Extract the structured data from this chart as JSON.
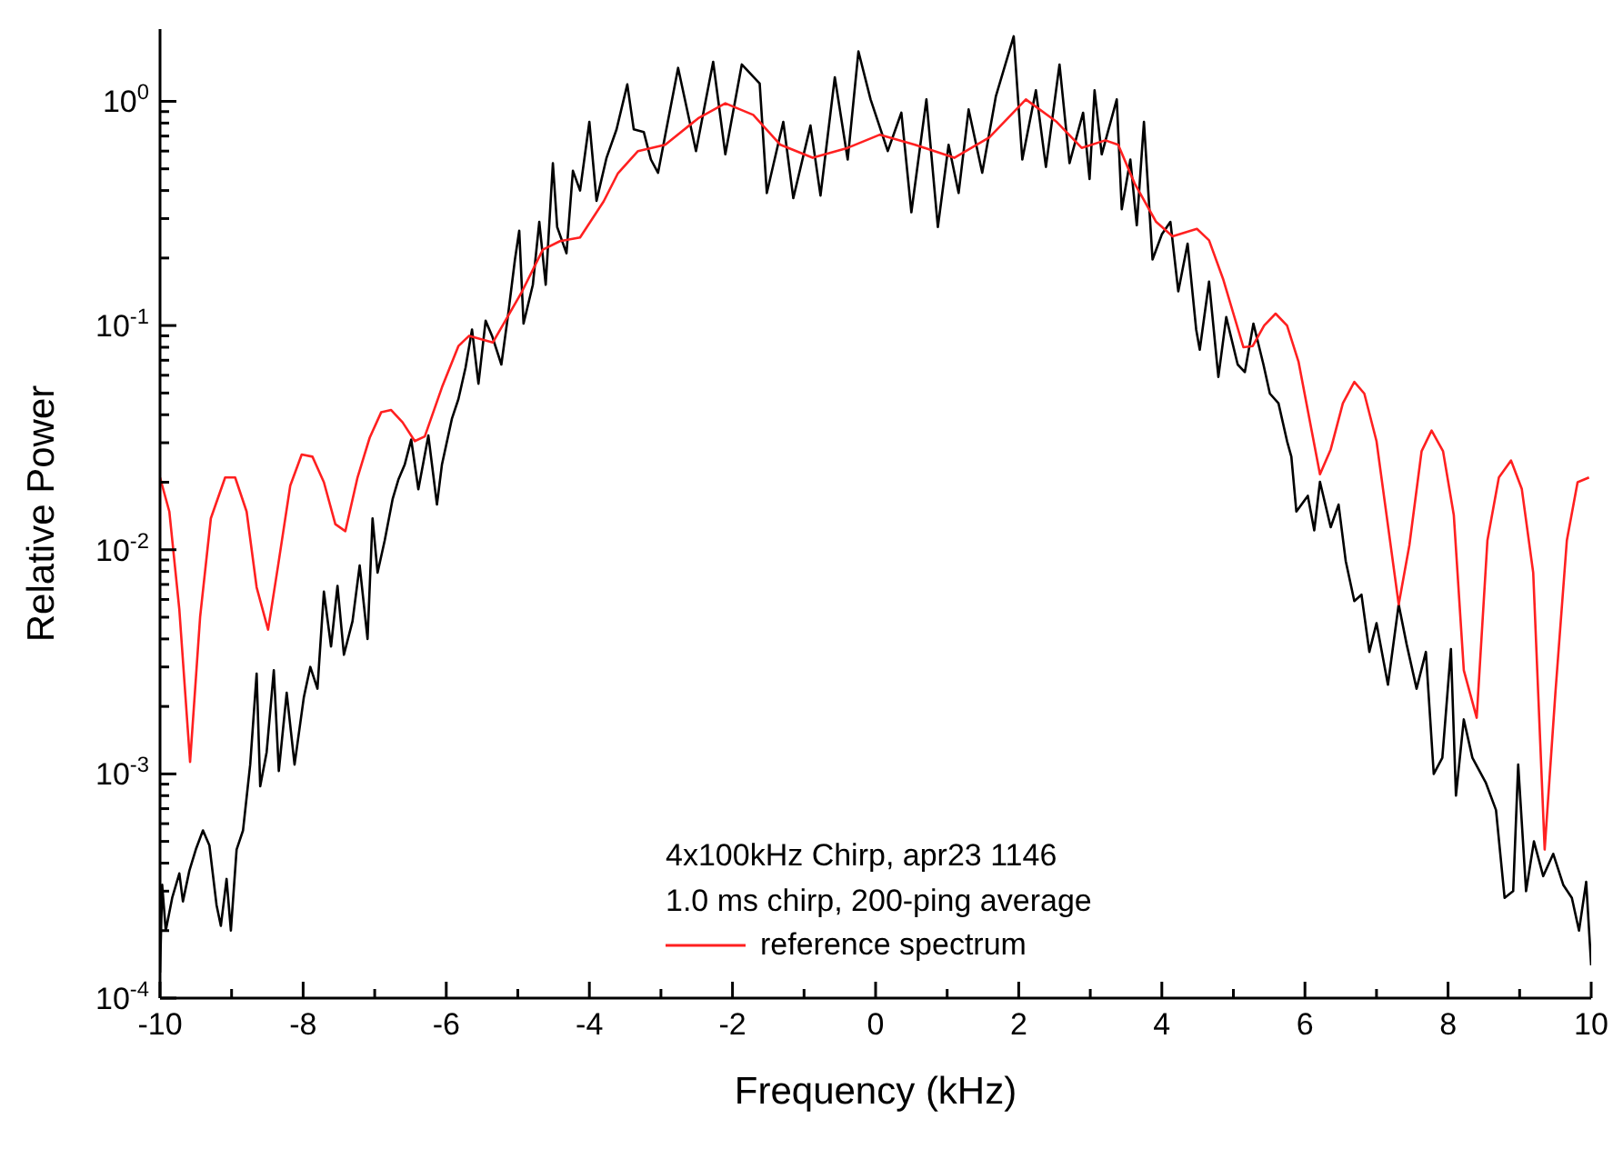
{
  "chart_data": {
    "type": "line",
    "xlabel": "Frequency (kHz)",
    "ylabel": "Relative Power",
    "log": "y",
    "grid": false,
    "marker": "none",
    "line_style": "solid",
    "legend": "bottom",
    "annotations": [
      "4x100kHz Chirp, apr23 1146",
      "1.0 ms chirp, 200-ping average"
    ],
    "xlim": [
      -10,
      10
    ],
    "xticks": [
      -10,
      {
        "value": -9,
        "label": null
      },
      -8,
      {
        "value": -7,
        "label": null
      },
      -6,
      {
        "value": -5,
        "label": null
      },
      -4,
      {
        "value": -3,
        "label": null
      },
      -2,
      {
        "value": -1,
        "label": null
      },
      0,
      {
        "value": 1,
        "label": null
      },
      2,
      {
        "value": 3,
        "label": null
      },
      4,
      {
        "value": 5,
        "label": null
      },
      6,
      {
        "value": 7,
        "label": null
      },
      8,
      {
        "value": 9,
        "label": null
      },
      10
    ],
    "ylim": [
      0.0001,
      2.1
    ],
    "yticks": [
      {
        "value": 0.0001,
        "label": "10$^{-4}$"
      },
      {
        "value": 0.0002,
        "label": null
      },
      {
        "value": 0.0003,
        "label": null
      },
      {
        "value": 0.0004,
        "label": null
      },
      {
        "value": 0.0005,
        "label": null
      },
      {
        "value": 0.0006,
        "label": null
      },
      {
        "value": 0.0007,
        "label": null
      },
      {
        "value": 0.0008,
        "label": null
      },
      {
        "value": 0.0009,
        "label": null
      },
      {
        "value": 0.001,
        "label": "10$^{-3}$"
      },
      {
        "value": 0.002,
        "label": null
      },
      {
        "value": 0.003,
        "label": null
      },
      {
        "value": 0.004,
        "label": null
      },
      {
        "value": 0.005,
        "label": null
      },
      {
        "value": 0.006,
        "label": null
      },
      {
        "value": 0.007,
        "label": null
      },
      {
        "value": 0.008,
        "label": null
      },
      {
        "value": 0.009,
        "label": null
      },
      {
        "value": 0.01,
        "label": "10$^{-2}$"
      },
      {
        "value": 0.02,
        "label": null
      },
      {
        "value": 0.03,
        "label": null
      },
      {
        "value": 0.04,
        "label": null
      },
      {
        "value": 0.05,
        "label": null
      },
      {
        "value": 0.06,
        "label": null
      },
      {
        "value": 0.07,
        "label": null
      },
      {
        "value": 0.08,
        "label": null
      },
      {
        "value": 0.09,
        "label": null
      },
      {
        "value": 0.1,
        "label": "10$^{-1}$"
      },
      {
        "value": 0.2,
        "label": null
      },
      {
        "value": 0.3,
        "label": null
      },
      {
        "value": 0.4,
        "label": null
      },
      {
        "value": 0.5,
        "label": null
      },
      {
        "value": 0.6,
        "label": null
      },
      {
        "value": 0.7,
        "label": null
      },
      {
        "value": 0.8,
        "label": null
      },
      {
        "value": 0.9,
        "label": null
      },
      {
        "value": 1,
        "label": "10$^{0}$"
      }
    ],
    "series": [
      {
        "color": "#000000",
        "x": [
          -10,
          -9.97,
          -9.92,
          -9.83,
          -9.73,
          -9.68,
          -9.59,
          -9.5,
          -9.4,
          -9.31,
          -9.21,
          -9.15,
          -9.07,
          -9.01,
          -8.93,
          -8.84,
          -8.74,
          -8.65,
          -8.6,
          -8.51,
          -8.41,
          -8.34,
          -8.23,
          -8.12,
          -7.99,
          -7.9,
          -7.8,
          -7.71,
          -7.61,
          -7.52,
          -7.43,
          -7.31,
          -7.21,
          -7.1,
          -7.03,
          -6.96,
          -6.86,
          -6.75,
          -6.67,
          -6.58,
          -6.49,
          -6.39,
          -6.25,
          -6.13,
          -6.06,
          -5.92,
          -5.83,
          -5.73,
          -5.64,
          -5.55,
          -5.45,
          -5.36,
          -5.23,
          -5.14,
          -5.04,
          -4.98,
          -4.92,
          -4.79,
          -4.7,
          -4.61,
          -4.51,
          -4.45,
          -4.32,
          -4.23,
          -4.13,
          -4,
          -3.9,
          -3.76,
          -3.62,
          -3.47,
          -3.38,
          -3.24,
          -3.14,
          -3.04,
          -2.76,
          -2.51,
          -2.27,
          -2.1,
          -1.87,
          -1.62,
          -1.52,
          -1.29,
          -1.15,
          -0.91,
          -0.77,
          -0.57,
          -0.39,
          -0.24,
          -0.07,
          0.17,
          0.36,
          0.5,
          0.71,
          0.87,
          1.02,
          1.16,
          1.3,
          1.49,
          1.68,
          1.93,
          2.05,
          2.24,
          2.38,
          2.57,
          2.71,
          2.9,
          2.99,
          3.06,
          3.16,
          3.37,
          3.44,
          3.56,
          3.65,
          3.75,
          3.87,
          4,
          4.12,
          4.23,
          4.36,
          4.48,
          4.53,
          4.66,
          4.79,
          4.9,
          5.06,
          5.16,
          5.28,
          5.42,
          5.51,
          5.63,
          5.75,
          5.81,
          5.88,
          6.04,
          6.13,
          6.21,
          6.36,
          6.47,
          6.57,
          6.69,
          6.79,
          6.9,
          7,
          7.16,
          7.31,
          7.42,
          7.56,
          7.69,
          7.8,
          7.92,
          8.04,
          8.11,
          8.22,
          8.34,
          8.53,
          8.67,
          8.79,
          8.91,
          8.98,
          9.09,
          9.2,
          9.33,
          9.47,
          9.61,
          9.73,
          9.83,
          9.93,
          10
        ],
        "values": [
          0.00013,
          0.00032,
          0.0002,
          0.00028,
          0.00036,
          0.00027,
          0.00037,
          0.00046,
          0.00056,
          0.00048,
          0.00026,
          0.00021,
          0.00034,
          0.0002,
          0.00046,
          0.00056,
          0.0011,
          0.0028,
          0.00088,
          0.00125,
          0.0029,
          0.00103,
          0.0023,
          0.0011,
          0.0022,
          0.003,
          0.0024,
          0.0065,
          0.0037,
          0.0069,
          0.0034,
          0.0048,
          0.0085,
          0.004,
          0.0138,
          0.0079,
          0.011,
          0.0168,
          0.0205,
          0.024,
          0.031,
          0.0186,
          0.0323,
          0.0159,
          0.024,
          0.0385,
          0.047,
          0.065,
          0.096,
          0.055,
          0.105,
          0.09,
          0.067,
          0.109,
          0.197,
          0.265,
          0.102,
          0.152,
          0.29,
          0.152,
          0.53,
          0.275,
          0.21,
          0.49,
          0.4,
          0.81,
          0.36,
          0.56,
          0.75,
          1.19,
          0.75,
          0.73,
          0.55,
          0.48,
          1.41,
          0.6,
          1.5,
          0.58,
          1.46,
          1.2,
          0.39,
          0.81,
          0.37,
          0.78,
          0.38,
          1.28,
          0.55,
          1.67,
          1.02,
          0.6,
          0.89,
          0.32,
          1.02,
          0.275,
          0.64,
          0.39,
          0.92,
          0.48,
          1.05,
          1.95,
          0.55,
          1.12,
          0.51,
          1.46,
          0.53,
          0.89,
          0.45,
          1.12,
          0.58,
          1.02,
          0.33,
          0.55,
          0.28,
          0.81,
          0.197,
          0.255,
          0.29,
          0.142,
          0.232,
          0.096,
          0.078,
          0.157,
          0.059,
          0.109,
          0.067,
          0.062,
          0.102,
          0.067,
          0.0497,
          0.045,
          0.0305,
          0.026,
          0.0148,
          0.0174,
          0.0122,
          0.0201,
          0.0126,
          0.0159,
          0.0089,
          0.0059,
          0.0063,
          0.0035,
          0.0047,
          0.0025,
          0.0057,
          0.0038,
          0.0024,
          0.0035,
          0.001,
          0.00118,
          0.0036,
          0.0008,
          0.00175,
          0.00118,
          0.00091,
          0.00069,
          0.00028,
          0.0003,
          0.0011,
          0.0003,
          0.0005,
          0.00035,
          0.00044,
          0.00032,
          0.00028,
          0.0002,
          0.00033,
          0.00014
        ]
      },
      {
        "name": "reference spectrum",
        "color": "#ff2020",
        "x": [
          -10,
          -9.87,
          -9.73,
          -9.58,
          -9.44,
          -9.29,
          -9.09,
          -8.95,
          -8.79,
          -8.65,
          -8.49,
          -8.35,
          -8.18,
          -8.02,
          -7.87,
          -7.71,
          -7.55,
          -7.41,
          -7.24,
          -7.07,
          -6.91,
          -6.77,
          -6.61,
          -6.44,
          -6.3,
          -6.06,
          -5.83,
          -5.68,
          -5.35,
          -4.94,
          -4.65,
          -4.41,
          -4.13,
          -3.8,
          -3.6,
          -3.32,
          -2.94,
          -2.48,
          -2.1,
          -1.71,
          -1.33,
          -0.88,
          -0.39,
          0.06,
          0.55,
          1.1,
          1.59,
          2.1,
          2.53,
          2.88,
          3.21,
          3.39,
          3.62,
          3.92,
          4.15,
          4.49,
          4.66,
          4.86,
          5.14,
          5.27,
          5.43,
          5.59,
          5.75,
          5.91,
          6.21,
          6.36,
          6.53,
          6.69,
          6.83,
          7,
          7.31,
          7.46,
          7.63,
          7.77,
          7.93,
          8.08,
          8.22,
          8.4,
          8.55,
          8.71,
          8.88,
          9.03,
          9.19,
          9.35,
          9.5,
          9.66,
          9.81,
          9.97
        ],
        "values": [
          0.021,
          0.0148,
          0.0054,
          0.00113,
          0.005,
          0.0138,
          0.021,
          0.021,
          0.0148,
          0.0068,
          0.0044,
          0.0085,
          0.0193,
          0.0266,
          0.026,
          0.02,
          0.013,
          0.0121,
          0.021,
          0.0316,
          0.041,
          0.042,
          0.037,
          0.0305,
          0.032,
          0.053,
          0.081,
          0.09,
          0.084,
          0.142,
          0.218,
          0.238,
          0.247,
          0.358,
          0.478,
          0.6,
          0.64,
          0.84,
          0.98,
          0.87,
          0.64,
          0.56,
          0.62,
          0.71,
          0.64,
          0.56,
          0.69,
          1.02,
          0.81,
          0.62,
          0.67,
          0.64,
          0.43,
          0.29,
          0.25,
          0.27,
          0.24,
          0.16,
          0.08,
          0.081,
          0.1,
          0.113,
          0.1,
          0.069,
          0.0217,
          0.028,
          0.045,
          0.056,
          0.0497,
          0.0305,
          0.0057,
          0.0105,
          0.0275,
          0.034,
          0.0275,
          0.0143,
          0.0029,
          0.00178,
          0.011,
          0.021,
          0.025,
          0.0187,
          0.0079,
          0.00046,
          0.0023,
          0.011,
          0.02,
          0.021
        ]
      }
    ]
  }
}
